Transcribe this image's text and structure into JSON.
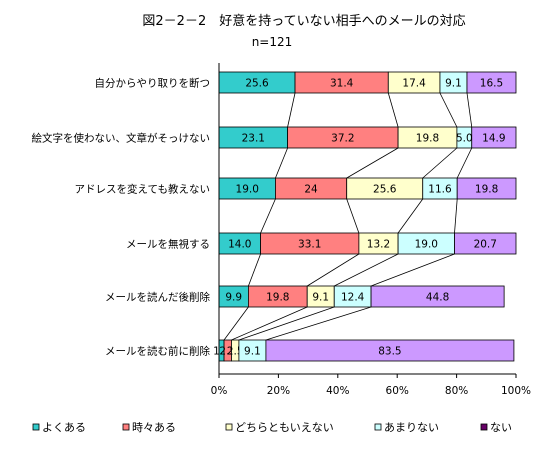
{
  "chart_data": {
    "type": "bar",
    "orientation": "horizontal",
    "stacked": "percent",
    "title": "図2－2－2　好意を持っていない相手へのメールの対応",
    "subtitle": "n=121",
    "categories": [
      "自分からやり取りを断つ",
      "絵文字を使わない、文章がそっけない",
      "アドレスを変えても教えない",
      "メールを無視する",
      "メールを読んだ後削除",
      "メールを読む前に削除"
    ],
    "series": [
      {
        "name": "よくある",
        "color": "#33cccc",
        "values": [
          25.6,
          23.1,
          19.0,
          14.0,
          9.9,
          1.7
        ]
      },
      {
        "name": "時々ある",
        "color": "#ff8080",
        "values": [
          31.4,
          37.2,
          24,
          33.1,
          19.8,
          2.5
        ]
      },
      {
        "name": "どちらともいえない",
        "color": "#ffffcc",
        "values": [
          17.4,
          19.8,
          25.6,
          13.2,
          9.1,
          2.5
        ]
      },
      {
        "name": "あまりない",
        "color": "#ccffff",
        "values": [
          9.1,
          5.0,
          11.6,
          19.0,
          12.4,
          9.1
        ]
      },
      {
        "name": "ない",
        "color": "#cc99ff",
        "values": [
          16.5,
          14.9,
          19.8,
          20.7,
          44.8,
          83.5
        ]
      }
    ],
    "value_labels": [
      [
        "25.6",
        "31.4",
        "17.4",
        "9.1",
        "16.5"
      ],
      [
        "23.1",
        "37.2",
        "19.8",
        "5.0",
        "14.9"
      ],
      [
        "19.0",
        "24",
        "25.6",
        "11.6",
        "19.8"
      ],
      [
        "14.0",
        "33.1",
        "13.2",
        "19.0",
        "20.7"
      ],
      [
        "9.9",
        "19.8",
        "9.1",
        "12.4",
        "44.8"
      ],
      [
        "1.7",
        "2.5",
        "2.5",
        "9.1",
        "83.5"
      ]
    ],
    "x_ticks": [
      "0%",
      "20%",
      "40%",
      "60%",
      "80%",
      "100%"
    ],
    "xlim": [
      0,
      100
    ],
    "grid": false,
    "series_lines": true,
    "legend_position": "bottom",
    "legend_marker_colors": [
      "#33cccc",
      "#ff8080",
      "#ffffcc",
      "#ccffff",
      "#660066"
    ]
  }
}
